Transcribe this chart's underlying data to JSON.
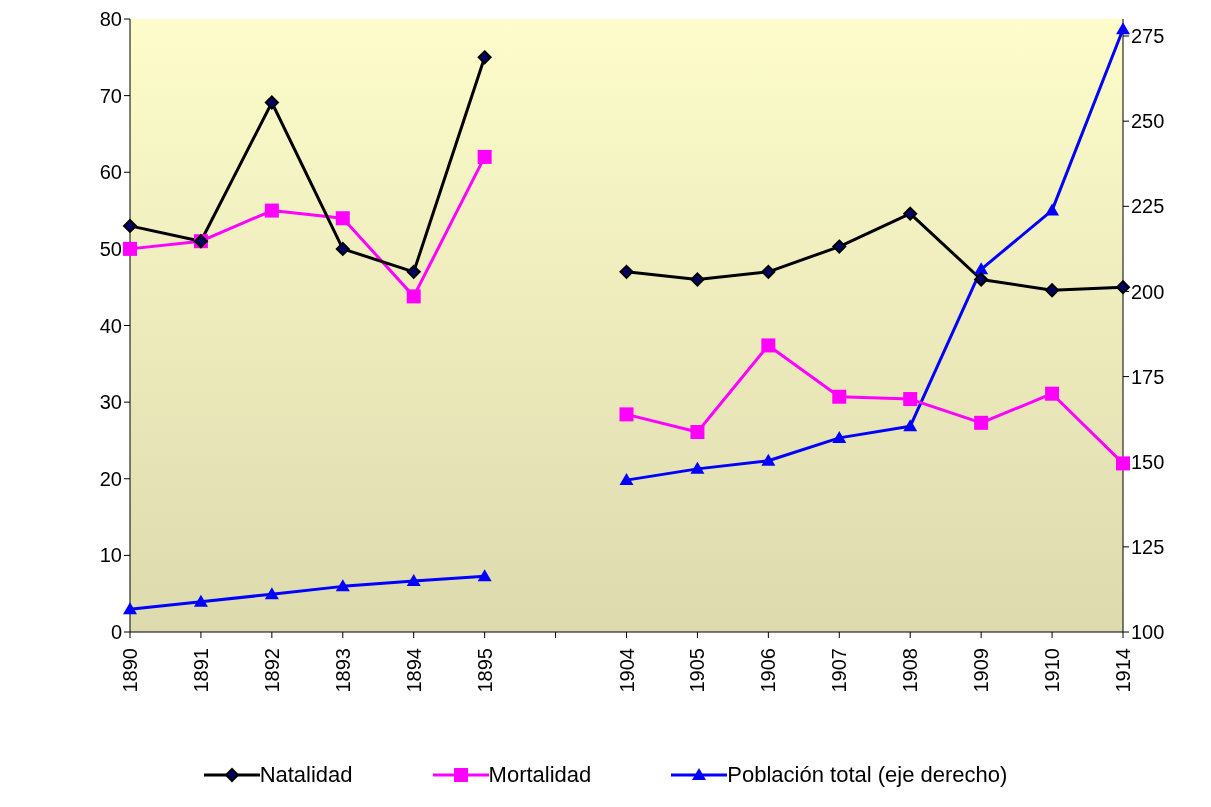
{
  "chart_data": {
    "type": "line",
    "categories": [
      "1890",
      "1891",
      "1892",
      "1893",
      "1894",
      "1895",
      null,
      "1904",
      "1905",
      "1906",
      "1907",
      "1908",
      "1909",
      "1910",
      "1914"
    ],
    "series": [
      {
        "name": "Natalidad",
        "color": "#000000",
        "marker": "diamond",
        "values": [
          53,
          51,
          69.1,
          50,
          47,
          75,
          null,
          47,
          46,
          47,
          50.3,
          54.6,
          46,
          44.6,
          45
        ]
      },
      {
        "name": "Mortalidad",
        "color": "#ff00ff",
        "marker": "square",
        "values": [
          50,
          51,
          55,
          54,
          43.8,
          62,
          null,
          28.4,
          26.1,
          37.4,
          30.7,
          30.4,
          27.3,
          31.1,
          22
        ]
      },
      {
        "name": "Población total (eje derecho)",
        "color": "#0000ff",
        "marker": "triangle",
        "axis": "y2",
        "values": [
          106.7,
          108.9,
          111.1,
          113.4,
          115,
          116.4,
          null,
          144.6,
          147.9,
          150.3,
          157,
          160.4,
          206.5,
          223.8,
          277
        ]
      }
    ],
    "ylim": [
      0,
      80
    ],
    "yticks": [
      0,
      10,
      20,
      30,
      40,
      50,
      60,
      70,
      80
    ],
    "y2lim": [
      100,
      280
    ],
    "y2ticks": [
      100,
      125,
      150,
      175,
      200,
      225,
      250,
      275
    ],
    "grid": false,
    "legend": "bottom",
    "line_style": "solid"
  }
}
